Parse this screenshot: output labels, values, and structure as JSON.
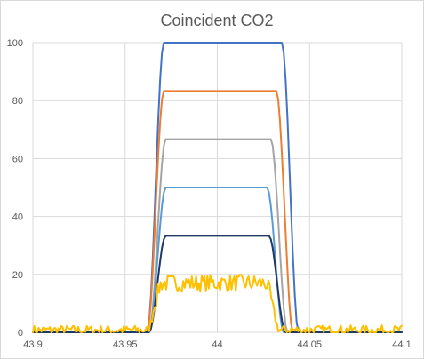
{
  "chart_data": {
    "type": "line",
    "title": "Coincident CO2",
    "xlabel": "",
    "ylabel": "",
    "xlim": [
      43.9,
      44.1
    ],
    "ylim": [
      0,
      100
    ],
    "x_ticks": [
      "43.9",
      "43.95",
      "44",
      "44.05",
      "44.1"
    ],
    "y_ticks": [
      "0",
      "20",
      "40",
      "60",
      "80",
      "100"
    ],
    "grid": true,
    "legend": "none",
    "series": [
      {
        "color": "#4472C4",
        "plateau": 100,
        "start": 43.962,
        "end": 44.044,
        "rise": 0.009
      },
      {
        "color": "#ED7D31",
        "plateau": 83.3,
        "start": 43.962,
        "end": 44.041,
        "rise": 0.009
      },
      {
        "color": "#A5A5A5",
        "plateau": 66.7,
        "start": 43.963,
        "end": 44.038,
        "rise": 0.009
      },
      {
        "color": "#5B9BD5",
        "plateau": 50,
        "start": 43.963,
        "end": 44.036,
        "rise": 0.009
      },
      {
        "color": "#1F3864",
        "plateau": 33.3,
        "start": 43.963,
        "end": 44.037,
        "rise": 0.009
      },
      {
        "color": "#FFC000",
        "plateau": 17,
        "start": 43.962,
        "end": 44.034,
        "rise": 0.008,
        "noisy": true
      }
    ]
  }
}
